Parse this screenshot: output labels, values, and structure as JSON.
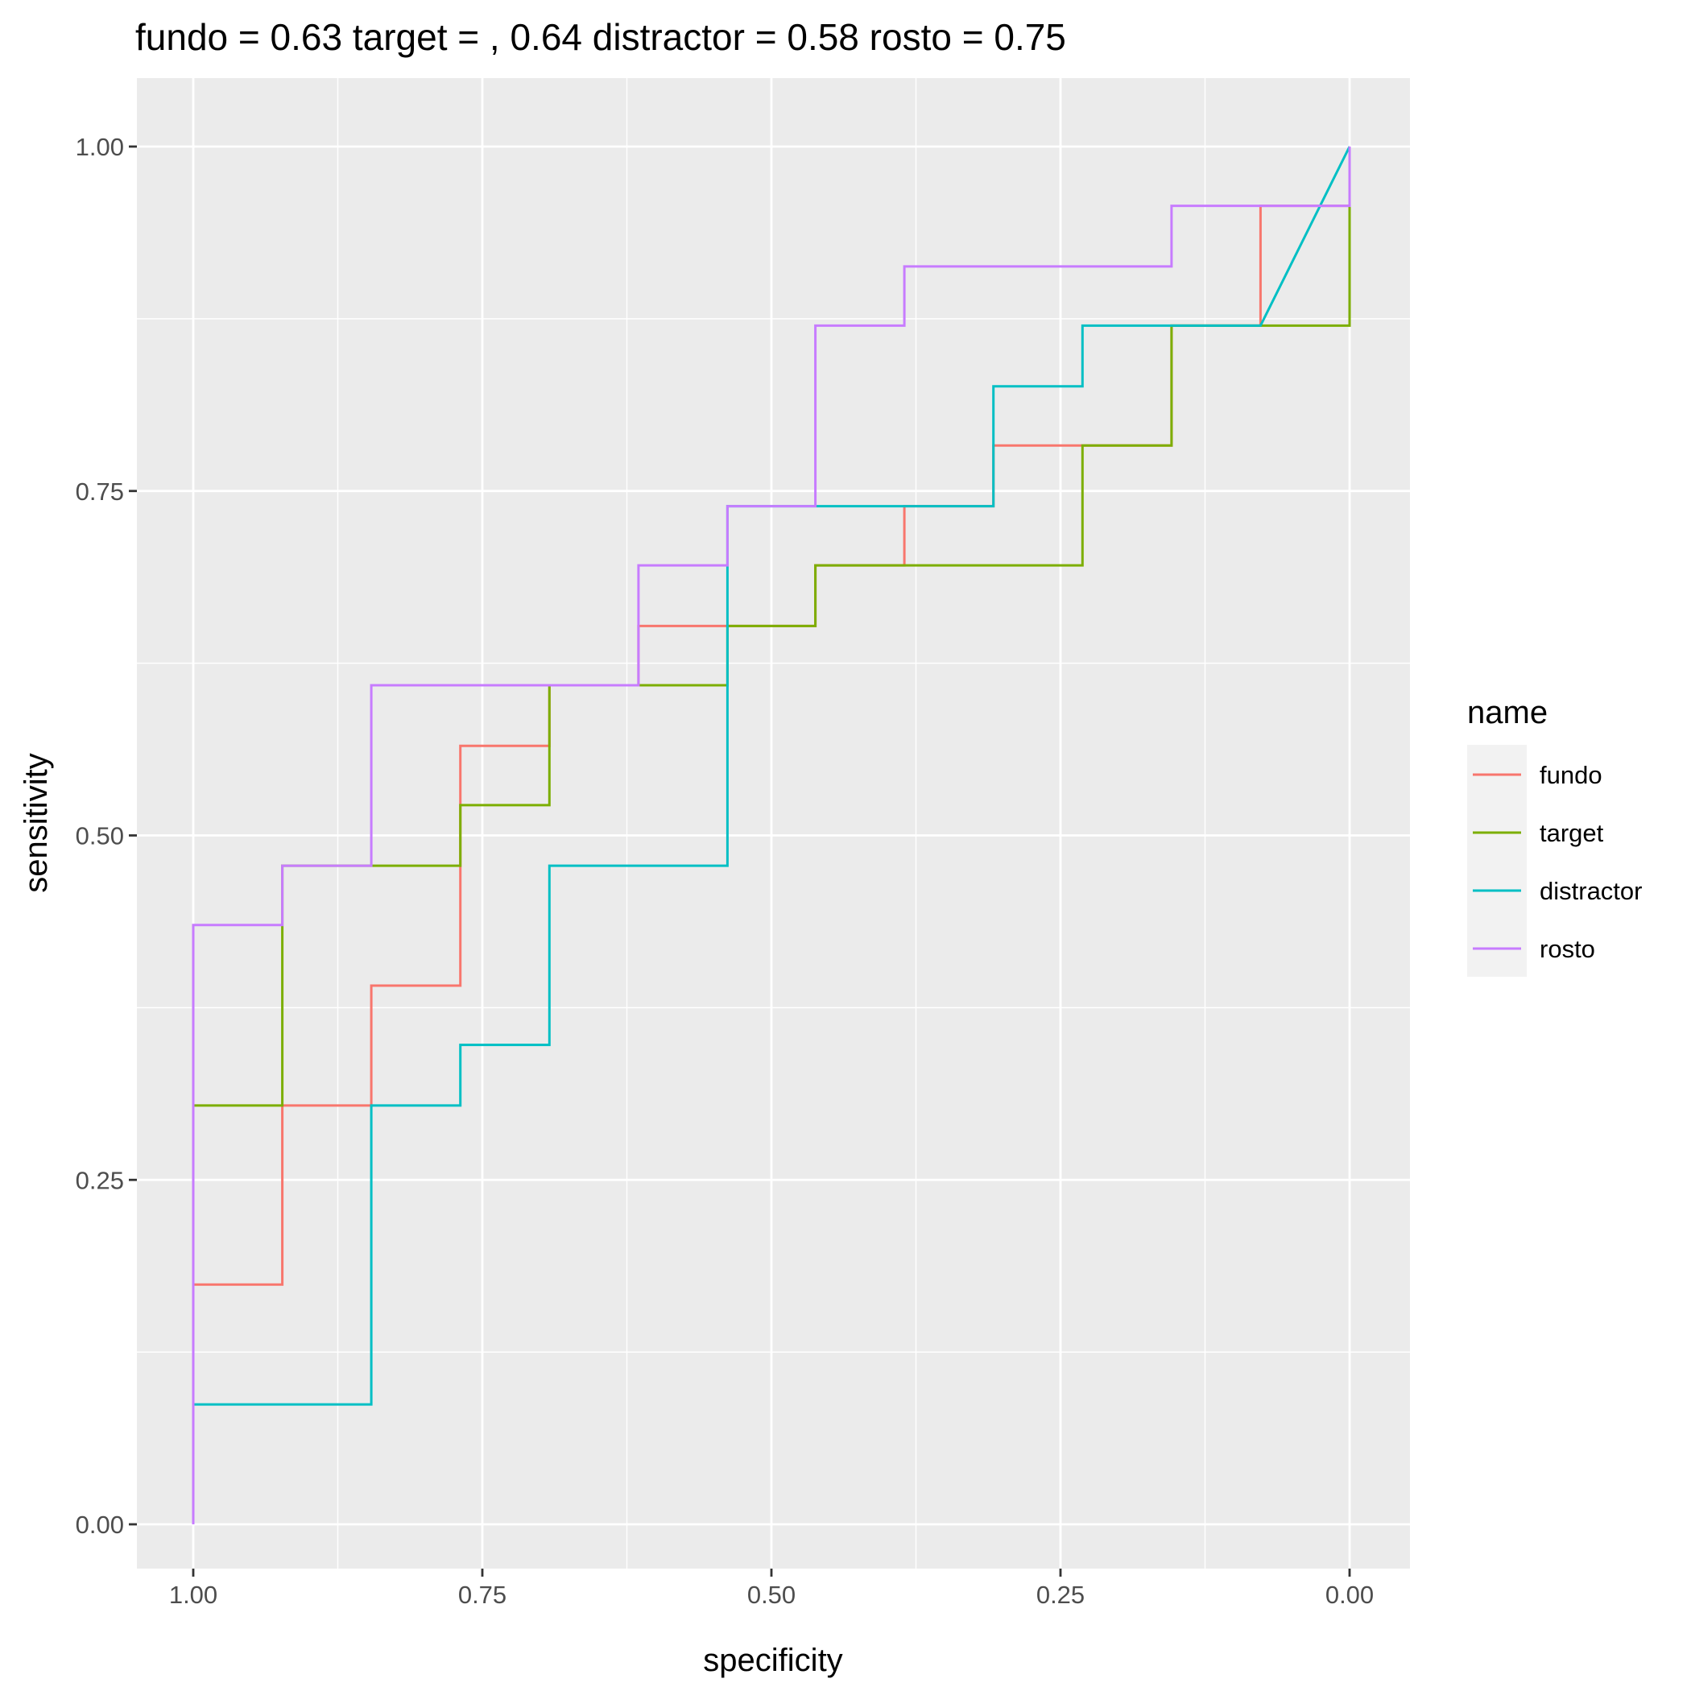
{
  "chart_data": {
    "type": "line",
    "title": "fundo =  0.63 target = , 0.64 distractor = 0.58 rosto = 0.75",
    "xlabel": "specificity",
    "ylabel": "sensitivity",
    "x_reversed": true,
    "xlim": [
      1.0,
      0.0
    ],
    "ylim": [
      0.0,
      1.0
    ],
    "x_ticks": [
      "1.00",
      "0.75",
      "0.50",
      "0.25",
      "0.00"
    ],
    "y_ticks": [
      "0.00",
      "0.25",
      "0.50",
      "0.75",
      "1.00"
    ],
    "grid": true,
    "legend": {
      "title": "name",
      "position": "right"
    },
    "series": [
      {
        "name": "fundo",
        "color": "#F8766D",
        "points": [
          [
            1.0,
            0.0
          ],
          [
            1.0,
            0.174
          ],
          [
            0.923,
            0.174
          ],
          [
            0.923,
            0.304
          ],
          [
            0.846,
            0.304
          ],
          [
            0.846,
            0.391
          ],
          [
            0.769,
            0.391
          ],
          [
            0.769,
            0.565
          ],
          [
            0.692,
            0.565
          ],
          [
            0.692,
            0.609
          ],
          [
            0.615,
            0.609
          ],
          [
            0.615,
            0.652
          ],
          [
            0.538,
            0.652
          ],
          [
            0.462,
            0.652
          ],
          [
            0.462,
            0.696
          ],
          [
            0.385,
            0.696
          ],
          [
            0.385,
            0.739
          ],
          [
            0.308,
            0.739
          ],
          [
            0.308,
            0.783
          ],
          [
            0.231,
            0.783
          ],
          [
            0.154,
            0.783
          ],
          [
            0.154,
            0.87
          ],
          [
            0.077,
            0.87
          ],
          [
            0.077,
            0.957
          ],
          [
            0.0,
            0.957
          ],
          [
            0.0,
            1.0
          ]
        ]
      },
      {
        "name": "target",
        "color": "#7CAE00",
        "points": [
          [
            1.0,
            0.0
          ],
          [
            1.0,
            0.304
          ],
          [
            0.923,
            0.304
          ],
          [
            0.923,
            0.478
          ],
          [
            0.846,
            0.478
          ],
          [
            0.769,
            0.478
          ],
          [
            0.769,
            0.522
          ],
          [
            0.692,
            0.522
          ],
          [
            0.692,
            0.609
          ],
          [
            0.538,
            0.609
          ],
          [
            0.538,
            0.652
          ],
          [
            0.462,
            0.652
          ],
          [
            0.462,
            0.696
          ],
          [
            0.231,
            0.696
          ],
          [
            0.231,
            0.783
          ],
          [
            0.154,
            0.783
          ],
          [
            0.154,
            0.87
          ],
          [
            0.0,
            0.87
          ],
          [
            0.0,
            0.957
          ],
          [
            0.0,
            1.0
          ]
        ]
      },
      {
        "name": "distractor",
        "color": "#00BFC4",
        "points": [
          [
            1.0,
            0.0
          ],
          [
            1.0,
            0.087
          ],
          [
            0.846,
            0.087
          ],
          [
            0.846,
            0.304
          ],
          [
            0.769,
            0.304
          ],
          [
            0.769,
            0.348
          ],
          [
            0.692,
            0.348
          ],
          [
            0.692,
            0.478
          ],
          [
            0.538,
            0.478
          ],
          [
            0.538,
            0.696
          ],
          [
            0.538,
            0.739
          ],
          [
            0.308,
            0.739
          ],
          [
            0.308,
            0.826
          ],
          [
            0.231,
            0.826
          ],
          [
            0.231,
            0.87
          ],
          [
            0.077,
            0.87
          ],
          [
            0.0,
            1.0
          ]
        ]
      },
      {
        "name": "rosto",
        "color": "#C77CFF",
        "points": [
          [
            1.0,
            0.0
          ],
          [
            1.0,
            0.435
          ],
          [
            0.923,
            0.435
          ],
          [
            0.923,
            0.478
          ],
          [
            0.846,
            0.478
          ],
          [
            0.846,
            0.609
          ],
          [
            0.615,
            0.609
          ],
          [
            0.615,
            0.696
          ],
          [
            0.538,
            0.696
          ],
          [
            0.538,
            0.739
          ],
          [
            0.462,
            0.739
          ],
          [
            0.462,
            0.87
          ],
          [
            0.385,
            0.87
          ],
          [
            0.385,
            0.913
          ],
          [
            0.154,
            0.913
          ],
          [
            0.154,
            0.957
          ],
          [
            0.0,
            0.957
          ],
          [
            0.0,
            1.0
          ]
        ]
      }
    ]
  }
}
